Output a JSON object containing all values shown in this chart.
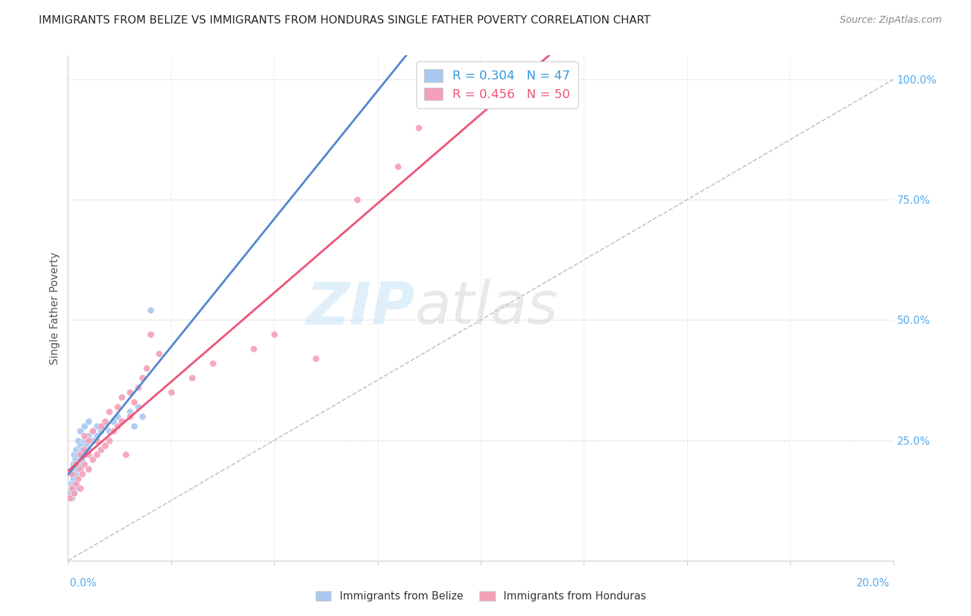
{
  "title": "IMMIGRANTS FROM BELIZE VS IMMIGRANTS FROM HONDURAS SINGLE FATHER POVERTY CORRELATION CHART",
  "source": "Source: ZipAtlas.com",
  "ylabel": "Single Father Poverty",
  "R_belize": 0.304,
  "N_belize": 47,
  "R_honduras": 0.456,
  "N_honduras": 50,
  "color_belize": "#a8c8f0",
  "color_honduras": "#f4a0b8",
  "line_belize": "#5588cc",
  "line_honduras": "#ee5577",
  "watermark_zip": "ZIP",
  "watermark_atlas": "atlas",
  "background": "#ffffff",
  "belize_x": [
    0.0005,
    0.0008,
    0.001,
    0.001,
    0.001,
    0.0012,
    0.0013,
    0.0014,
    0.0015,
    0.0015,
    0.0016,
    0.0017,
    0.0018,
    0.002,
    0.002,
    0.002,
    0.0022,
    0.0025,
    0.0025,
    0.003,
    0.003,
    0.003,
    0.003,
    0.0032,
    0.0035,
    0.004,
    0.004,
    0.004,
    0.0045,
    0.005,
    0.005,
    0.005,
    0.006,
    0.006,
    0.007,
    0.007,
    0.008,
    0.009,
    0.01,
    0.011,
    0.012,
    0.013,
    0.015,
    0.016,
    0.017,
    0.018,
    0.02
  ],
  "belize_y": [
    0.14,
    0.16,
    0.13,
    0.15,
    0.18,
    0.17,
    0.2,
    0.14,
    0.19,
    0.22,
    0.16,
    0.21,
    0.15,
    0.18,
    0.2,
    0.23,
    0.19,
    0.22,
    0.25,
    0.2,
    0.22,
    0.24,
    0.27,
    0.21,
    0.23,
    0.22,
    0.25,
    0.28,
    0.24,
    0.23,
    0.26,
    0.29,
    0.25,
    0.27,
    0.26,
    0.28,
    0.27,
    0.28,
    0.27,
    0.29,
    0.3,
    0.29,
    0.31,
    0.28,
    0.32,
    0.3,
    0.52
  ],
  "honduras_x": [
    0.0005,
    0.001,
    0.001,
    0.0015,
    0.002,
    0.002,
    0.0025,
    0.003,
    0.003,
    0.003,
    0.0035,
    0.004,
    0.004,
    0.004,
    0.005,
    0.005,
    0.005,
    0.006,
    0.006,
    0.007,
    0.007,
    0.008,
    0.008,
    0.009,
    0.009,
    0.01,
    0.01,
    0.011,
    0.012,
    0.012,
    0.013,
    0.013,
    0.014,
    0.015,
    0.015,
    0.016,
    0.017,
    0.018,
    0.019,
    0.02,
    0.022,
    0.025,
    0.03,
    0.035,
    0.045,
    0.05,
    0.06,
    0.07,
    0.08,
    0.085
  ],
  "honduras_y": [
    0.13,
    0.15,
    0.18,
    0.14,
    0.16,
    0.2,
    0.17,
    0.15,
    0.19,
    0.22,
    0.18,
    0.2,
    0.23,
    0.26,
    0.19,
    0.22,
    0.25,
    0.21,
    0.27,
    0.22,
    0.25,
    0.23,
    0.28,
    0.24,
    0.29,
    0.25,
    0.31,
    0.27,
    0.28,
    0.32,
    0.29,
    0.34,
    0.22,
    0.3,
    0.35,
    0.33,
    0.36,
    0.38,
    0.4,
    0.47,
    0.43,
    0.35,
    0.38,
    0.41,
    0.44,
    0.47,
    0.42,
    0.75,
    0.82,
    0.9
  ],
  "xlim": [
    0,
    0.2
  ],
  "ylim_min": 0.0,
  "ylim_max": 1.05,
  "right_yticks": [
    1.0,
    0.75,
    0.5,
    0.25
  ],
  "right_yticklabels": [
    "100.0%",
    "75.0%",
    "50.0%",
    "25.0%"
  ],
  "xtick_positions": [
    0.0,
    0.025,
    0.05,
    0.075,
    0.1,
    0.125,
    0.15,
    0.175,
    0.2
  ],
  "hgrid_vals": [
    0.25,
    0.5,
    0.75,
    1.0
  ],
  "vgrid_vals": [
    0.025,
    0.05,
    0.075,
    0.1,
    0.125,
    0.15,
    0.175
  ]
}
